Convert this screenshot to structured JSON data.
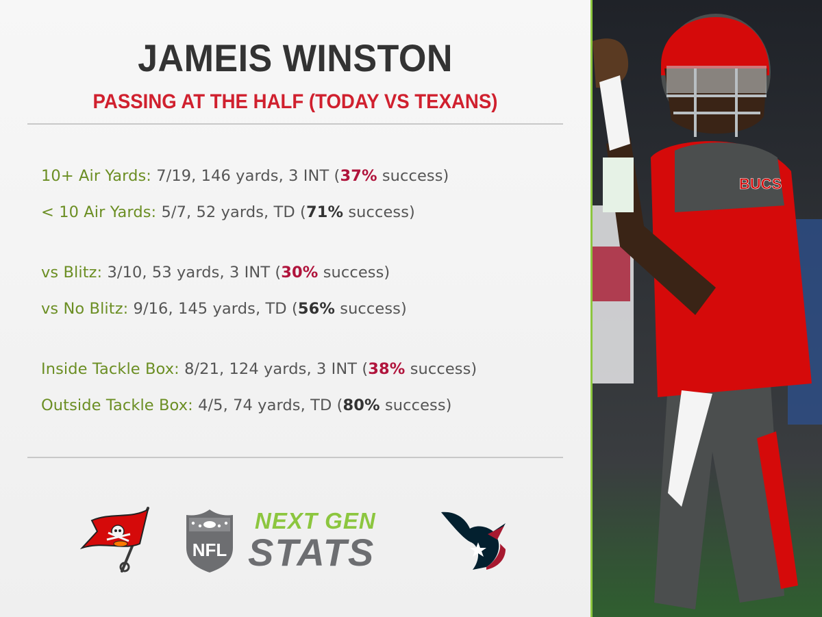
{
  "header": {
    "title": "JAMEIS WINSTON",
    "subtitle": "PASSING AT THE HALF (TODAY VS TEXANS)"
  },
  "stats": [
    {
      "label": "10+ Air Yards:",
      "value": " 7/19, 146 yards, 3 INT (",
      "pct": "37%",
      "pct_tone": "bad",
      "tail": " success)"
    },
    {
      "label": "< 10 Air Yards:",
      "value": " 5/7, 52 yards, TD (",
      "pct": "71%",
      "pct_tone": "good",
      "tail": " success)"
    },
    {
      "label": "vs Blitz:",
      "value": " 3/10, 53 yards, 3 INT (",
      "pct": "30%",
      "pct_tone": "bad",
      "tail": " success)"
    },
    {
      "label": "vs No Blitz:",
      "value": " 9/16, 145 yards, TD (",
      "pct": "56%",
      "pct_tone": "good",
      "tail": " success)"
    },
    {
      "label": "Inside Tackle Box:",
      "value": " 8/21, 124 yards, 3 INT (",
      "pct": "38%",
      "pct_tone": "bad",
      "tail": " success)"
    },
    {
      "label": "Outside Tackle Box:",
      "value": " 4/5, 74 yards, TD (",
      "pct": "80%",
      "pct_tone": "good",
      "tail": " success)"
    }
  ],
  "logos": {
    "team_left": "buccaneers-flag-logo",
    "league": "nfl-shield-logo",
    "ngs_line1": "NEXT GEN",
    "ngs_line2": "STATS",
    "team_right": "texans-bull-logo",
    "nfl_text": "NFL",
    "jersey_text": "BUCS"
  },
  "colors": {
    "accent_red": "#d0202e",
    "label_green": "#6b8e23",
    "ngs_green": "#8cc63f",
    "bad_pct": "#b0143c"
  }
}
